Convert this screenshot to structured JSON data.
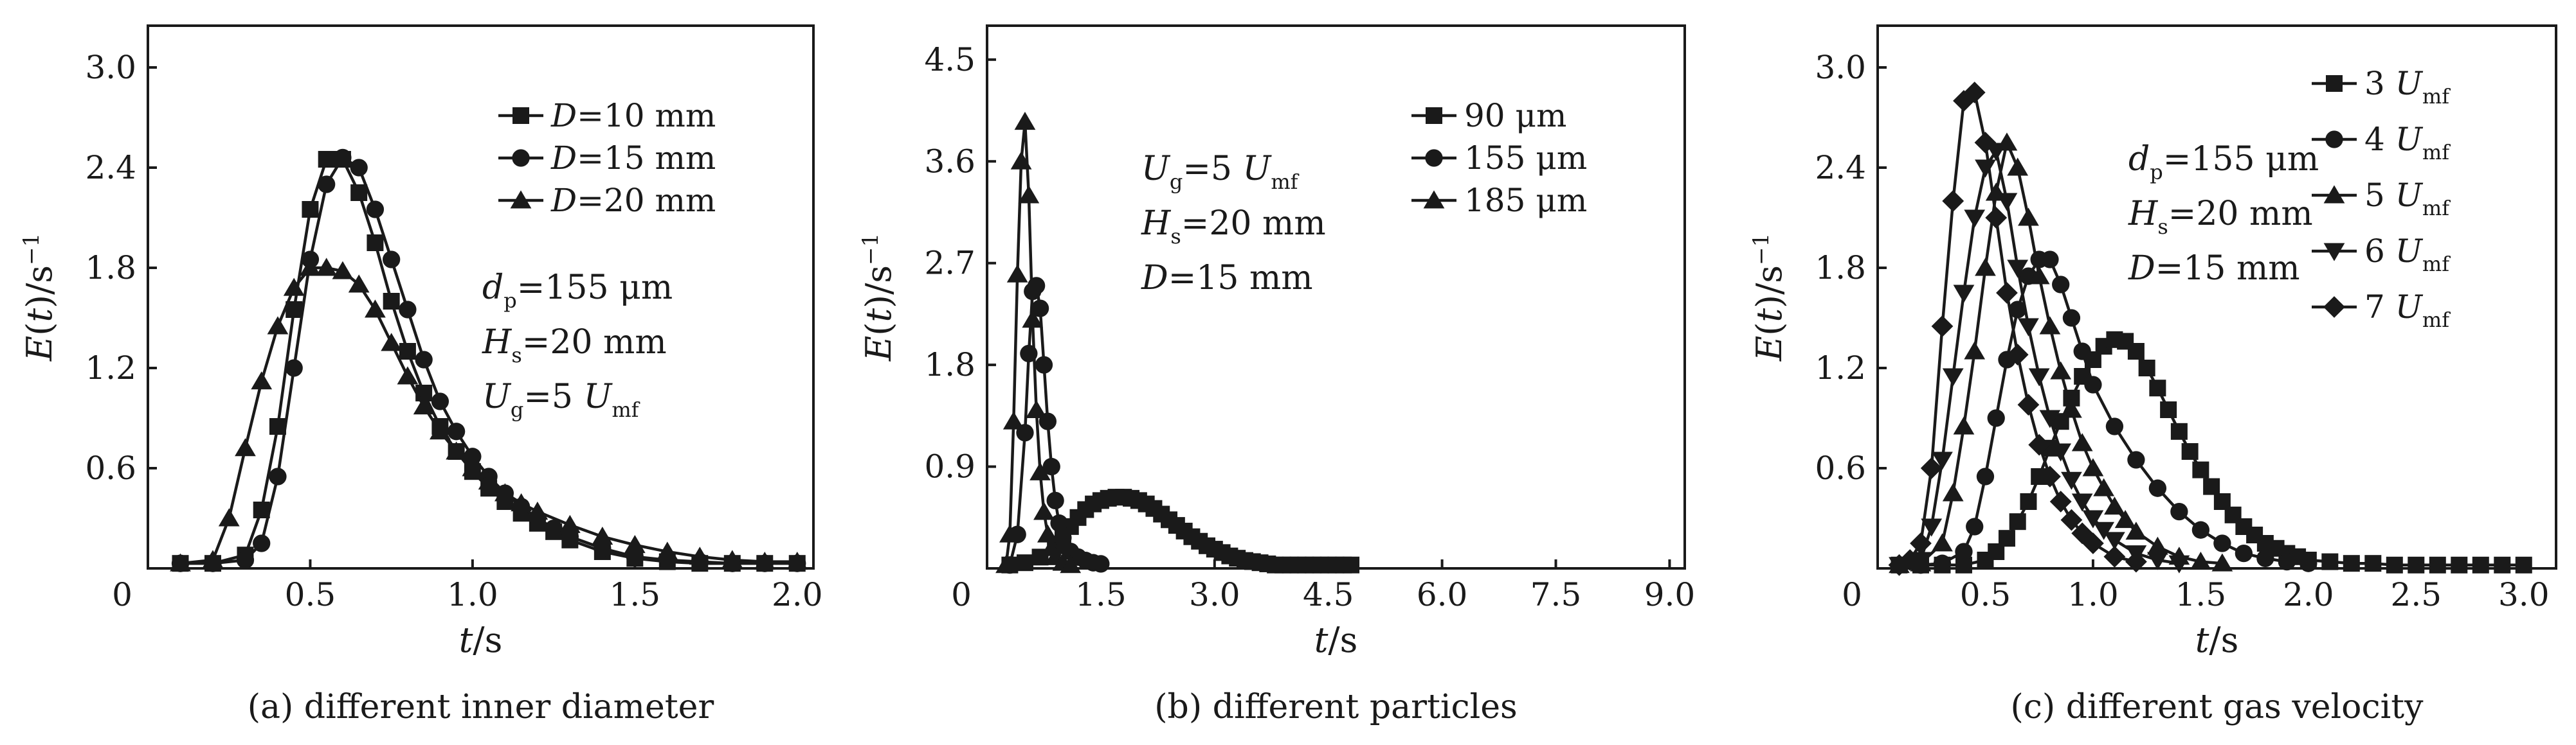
{
  "figure": {
    "panels": [
      {
        "caption": "(a) different inner diameter",
        "xlabel": {
          "main": "t",
          "unit": "/s"
        },
        "ylabel": {
          "main": "E",
          "paren": "(t)",
          "unit": "/s",
          "exp": "−1"
        },
        "annotation": [
          {
            "main": "d",
            "sub": "p",
            "rest": "=155 μm"
          },
          {
            "main": "H",
            "sub": "s",
            "rest": "=20 mm"
          },
          {
            "main": "U",
            "sub": "g",
            "rest": "=5 ",
            "tail_main": "U",
            "tail_sub": "mf"
          }
        ],
        "legend": [
          {
            "main": "D",
            "rest": "=10 mm",
            "sub": ""
          },
          {
            "main": "D",
            "rest": "=15 mm",
            "sub": ""
          },
          {
            "main": "D",
            "rest": "=20 mm",
            "sub": ""
          }
        ]
      },
      {
        "caption": "(b) different particles",
        "xlabel": {
          "main": "t",
          "unit": "/s"
        },
        "ylabel": {
          "main": "E",
          "paren": "(t)",
          "unit": "/s",
          "exp": "−1"
        },
        "annotation": [
          {
            "main": "U",
            "sub": "g",
            "rest": "=5 ",
            "tail_main": "U",
            "tail_sub": "mf"
          },
          {
            "main": "H",
            "sub": "s",
            "rest": "=20 mm"
          },
          {
            "main": "D",
            "sub": "",
            "rest": "=15 mm"
          }
        ],
        "legend": [
          {
            "main": "",
            "rest": "90 μm",
            "sub": ""
          },
          {
            "main": "",
            "rest": "155 μm",
            "sub": ""
          },
          {
            "main": "",
            "rest": "185 μm",
            "sub": ""
          }
        ]
      },
      {
        "caption": "(c) different gas velocity",
        "xlabel": {
          "main": "t",
          "unit": "/s"
        },
        "ylabel": {
          "main": "E",
          "paren": "(t)",
          "unit": "/s",
          "exp": "−1"
        },
        "annotation": [
          {
            "main": "d",
            "sub": "p",
            "rest": "=155 μm"
          },
          {
            "main": "H",
            "sub": "s",
            "rest": "=20 mm"
          },
          {
            "main": "D",
            "sub": "",
            "rest": "=15 mm"
          }
        ],
        "legend": [
          {
            "main": "U",
            "rest": "3 ",
            "sub": "mf"
          },
          {
            "main": "U",
            "rest": "4 ",
            "sub": "mf"
          },
          {
            "main": "U",
            "rest": "5 ",
            "sub": "mf"
          },
          {
            "main": "U",
            "rest": "6 ",
            "sub": "mf"
          },
          {
            "main": "U",
            "rest": "7 ",
            "sub": "mf"
          }
        ]
      }
    ]
  },
  "chart_data": [
    {
      "type": "line",
      "xlim": [
        0,
        2.05
      ],
      "ylim": [
        0,
        3.25
      ],
      "xticks": [
        0.5,
        1.0,
        1.5,
        2.0
      ],
      "xtick_labels": [
        "0.5",
        "1.0",
        "1.5",
        "2.0"
      ],
      "yticks": [
        0.6,
        1.2,
        1.8,
        2.4,
        3.0
      ],
      "ytick_labels": [
        "0.6",
        "1.2",
        "1.8",
        "2.4",
        "3.0"
      ],
      "origin_label": "0",
      "grid": false,
      "legend_position": "top-right",
      "series": [
        {
          "marker": "square",
          "x": [
            0.1,
            0.2,
            0.3,
            0.35,
            0.4,
            0.45,
            0.5,
            0.55,
            0.6,
            0.65,
            0.7,
            0.75,
            0.8,
            0.85,
            0.9,
            0.95,
            1.0,
            1.05,
            1.1,
            1.15,
            1.2,
            1.25,
            1.3,
            1.4,
            1.5,
            1.6,
            1.7,
            1.8,
            1.9,
            2.0
          ],
          "y": [
            0.03,
            0.03,
            0.08,
            0.35,
            0.85,
            1.55,
            2.15,
            2.45,
            2.45,
            2.25,
            1.95,
            1.6,
            1.3,
            1.05,
            0.85,
            0.7,
            0.58,
            0.48,
            0.4,
            0.33,
            0.27,
            0.22,
            0.17,
            0.1,
            0.06,
            0.04,
            0.03,
            0.03,
            0.03,
            0.03
          ]
        },
        {
          "marker": "circle",
          "x": [
            0.1,
            0.2,
            0.3,
            0.35,
            0.4,
            0.45,
            0.5,
            0.55,
            0.6,
            0.65,
            0.7,
            0.75,
            0.8,
            0.85,
            0.9,
            0.95,
            1.0,
            1.05,
            1.1,
            1.15,
            1.2,
            1.25,
            1.3,
            1.4,
            1.5,
            1.6,
            1.7,
            1.8,
            1.9,
            2.0
          ],
          "y": [
            0.03,
            0.03,
            0.05,
            0.15,
            0.55,
            1.2,
            1.85,
            2.3,
            2.46,
            2.4,
            2.15,
            1.85,
            1.55,
            1.25,
            1.0,
            0.82,
            0.67,
            0.55,
            0.45,
            0.37,
            0.3,
            0.24,
            0.19,
            0.12,
            0.07,
            0.05,
            0.04,
            0.03,
            0.03,
            0.03
          ]
        },
        {
          "marker": "triangle",
          "x": [
            0.1,
            0.2,
            0.25,
            0.3,
            0.35,
            0.4,
            0.45,
            0.5,
            0.55,
            0.6,
            0.65,
            0.7,
            0.75,
            0.8,
            0.85,
            0.9,
            0.95,
            1.0,
            1.05,
            1.1,
            1.15,
            1.2,
            1.3,
            1.4,
            1.5,
            1.6,
            1.7,
            1.8,
            1.9,
            2.0
          ],
          "y": [
            0.03,
            0.05,
            0.3,
            0.72,
            1.12,
            1.45,
            1.68,
            1.8,
            1.8,
            1.78,
            1.7,
            1.55,
            1.35,
            1.15,
            0.97,
            0.82,
            0.7,
            0.6,
            0.52,
            0.45,
            0.39,
            0.34,
            0.26,
            0.19,
            0.14,
            0.1,
            0.07,
            0.05,
            0.04,
            0.04
          ]
        }
      ]
    },
    {
      "type": "line",
      "xlim": [
        0,
        9.2
      ],
      "ylim": [
        0,
        4.8
      ],
      "xticks": [
        1.5,
        3.0,
        4.5,
        6.0,
        7.5,
        9.0
      ],
      "xtick_labels": [
        "1.5",
        "3.0",
        "4.5",
        "6.0",
        "7.5",
        "9.0"
      ],
      "yticks": [
        0.9,
        1.8,
        2.7,
        3.6,
        4.5
      ],
      "ytick_labels": [
        "0.9",
        "1.8",
        "2.7",
        "3.6",
        "4.5"
      ],
      "origin_label": "0",
      "grid": false,
      "legend_position": "top-right",
      "series": [
        {
          "marker": "square",
          "x": [
            0.3,
            0.5,
            0.7,
            0.9,
            1.0,
            1.1,
            1.2,
            1.3,
            1.4,
            1.5,
            1.6,
            1.7,
            1.8,
            1.9,
            2.0,
            2.1,
            2.2,
            2.3,
            2.4,
            2.5,
            2.6,
            2.7,
            2.8,
            2.9,
            3.0,
            3.1,
            3.2,
            3.3,
            3.4,
            3.5,
            3.6,
            3.7,
            3.8,
            3.9,
            4.0,
            4.1,
            4.2,
            4.3,
            4.4,
            4.5,
            4.6,
            4.7,
            4.8
          ],
          "y": [
            0.03,
            0.05,
            0.1,
            0.2,
            0.28,
            0.37,
            0.45,
            0.52,
            0.57,
            0.6,
            0.62,
            0.63,
            0.63,
            0.62,
            0.6,
            0.57,
            0.53,
            0.48,
            0.43,
            0.38,
            0.33,
            0.28,
            0.24,
            0.2,
            0.17,
            0.14,
            0.11,
            0.09,
            0.07,
            0.06,
            0.05,
            0.04,
            0.03,
            0.03,
            0.03,
            0.03,
            0.03,
            0.03,
            0.03,
            0.03,
            0.03,
            0.03,
            0.03
          ]
        },
        {
          "marker": "circle",
          "x": [
            0.3,
            0.4,
            0.5,
            0.55,
            0.6,
            0.65,
            0.7,
            0.75,
            0.8,
            0.85,
            0.9,
            0.95,
            1.0,
            1.1,
            1.2,
            1.3,
            1.4,
            1.5
          ],
          "y": [
            0.03,
            0.3,
            1.2,
            1.9,
            2.45,
            2.5,
            2.3,
            1.8,
            1.3,
            0.9,
            0.6,
            0.4,
            0.27,
            0.15,
            0.1,
            0.07,
            0.05,
            0.04
          ]
        },
        {
          "marker": "triangle",
          "x": [
            0.25,
            0.3,
            0.35,
            0.4,
            0.45,
            0.5,
            0.55,
            0.6,
            0.65,
            0.7,
            0.75,
            0.8,
            0.85,
            0.9,
            1.0,
            1.1
          ],
          "y": [
            0.03,
            0.3,
            1.3,
            2.6,
            3.6,
            3.95,
            3.3,
            2.2,
            1.4,
            0.85,
            0.5,
            0.3,
            0.18,
            0.1,
            0.05,
            0.03
          ]
        }
      ]
    },
    {
      "type": "line",
      "xlim": [
        0,
        3.15
      ],
      "ylim": [
        0,
        3.25
      ],
      "xticks": [
        0.5,
        1.0,
        1.5,
        2.0,
        2.5,
        3.0
      ],
      "xtick_labels": [
        "0.5",
        "1.0",
        "1.5",
        "2.0",
        "2.5",
        "3.0"
      ],
      "yticks": [
        0.6,
        1.2,
        1.8,
        2.4,
        3.0
      ],
      "ytick_labels": [
        "0.6",
        "1.2",
        "1.8",
        "2.4",
        "3.0"
      ],
      "origin_label": "0",
      "grid": false,
      "legend_position": "top-right",
      "series": [
        {
          "marker": "square",
          "x": [
            0.1,
            0.2,
            0.3,
            0.4,
            0.5,
            0.55,
            0.6,
            0.65,
            0.7,
            0.75,
            0.8,
            0.85,
            0.9,
            0.95,
            1.0,
            1.05,
            1.1,
            1.15,
            1.2,
            1.25,
            1.3,
            1.35,
            1.4,
            1.45,
            1.5,
            1.55,
            1.6,
            1.65,
            1.7,
            1.75,
            1.8,
            1.85,
            1.9,
            1.95,
            2.0,
            2.1,
            2.2,
            2.3,
            2.4,
            2.5,
            2.6,
            2.7,
            2.8,
            2.9,
            3.0
          ],
          "y": [
            0.02,
            0.02,
            0.02,
            0.02,
            0.05,
            0.1,
            0.18,
            0.28,
            0.4,
            0.55,
            0.72,
            0.88,
            1.02,
            1.15,
            1.25,
            1.33,
            1.37,
            1.36,
            1.3,
            1.2,
            1.08,
            0.95,
            0.82,
            0.7,
            0.59,
            0.49,
            0.4,
            0.32,
            0.25,
            0.2,
            0.15,
            0.12,
            0.09,
            0.07,
            0.05,
            0.04,
            0.03,
            0.03,
            0.02,
            0.02,
            0.02,
            0.02,
            0.02,
            0.02,
            0.02
          ]
        },
        {
          "marker": "circle",
          "x": [
            0.1,
            0.2,
            0.3,
            0.4,
            0.45,
            0.5,
            0.55,
            0.6,
            0.65,
            0.7,
            0.75,
            0.8,
            0.85,
            0.9,
            0.95,
            1.0,
            1.1,
            1.2,
            1.3,
            1.4,
            1.5,
            1.6,
            1.7,
            1.8,
            1.9,
            2.0
          ],
          "y": [
            0.02,
            0.02,
            0.03,
            0.1,
            0.25,
            0.55,
            0.9,
            1.25,
            1.55,
            1.75,
            1.85,
            1.85,
            1.7,
            1.5,
            1.3,
            1.1,
            0.85,
            0.65,
            0.48,
            0.34,
            0.23,
            0.15,
            0.09,
            0.06,
            0.04,
            0.03
          ]
        },
        {
          "marker": "triangle",
          "x": [
            0.1,
            0.2,
            0.3,
            0.35,
            0.4,
            0.45,
            0.5,
            0.55,
            0.6,
            0.65,
            0.7,
            0.75,
            0.8,
            0.85,
            0.9,
            0.95,
            1.0,
            1.05,
            1.1,
            1.15,
            1.2,
            1.3,
            1.4,
            1.5,
            1.6
          ],
          "y": [
            0.02,
            0.03,
            0.15,
            0.45,
            0.85,
            1.3,
            1.8,
            2.25,
            2.55,
            2.4,
            2.1,
            1.75,
            1.45,
            1.18,
            0.95,
            0.75,
            0.6,
            0.48,
            0.37,
            0.29,
            0.22,
            0.13,
            0.07,
            0.04,
            0.03
          ]
        },
        {
          "marker": "triangle-down",
          "x": [
            0.1,
            0.2,
            0.25,
            0.3,
            0.35,
            0.4,
            0.45,
            0.5,
            0.55,
            0.6,
            0.65,
            0.7,
            0.75,
            0.8,
            0.85,
            0.9,
            0.95,
            1.0,
            1.05,
            1.1,
            1.2,
            1.3,
            1.4
          ],
          "y": [
            0.02,
            0.05,
            0.25,
            0.65,
            1.15,
            1.65,
            2.1,
            2.4,
            2.5,
            2.2,
            1.8,
            1.45,
            1.15,
            0.9,
            0.7,
            0.53,
            0.4,
            0.3,
            0.23,
            0.17,
            0.09,
            0.05,
            0.03
          ]
        },
        {
          "marker": "diamond",
          "x": [
            0.1,
            0.15,
            0.2,
            0.25,
            0.3,
            0.35,
            0.4,
            0.45,
            0.5,
            0.55,
            0.6,
            0.65,
            0.7,
            0.75,
            0.8,
            0.85,
            0.9,
            0.95,
            1.0,
            1.1,
            1.2
          ],
          "y": [
            0.02,
            0.05,
            0.15,
            0.6,
            1.45,
            2.2,
            2.8,
            2.85,
            2.55,
            2.1,
            1.65,
            1.28,
            0.98,
            0.74,
            0.55,
            0.4,
            0.29,
            0.21,
            0.15,
            0.07,
            0.04
          ]
        }
      ]
    }
  ]
}
